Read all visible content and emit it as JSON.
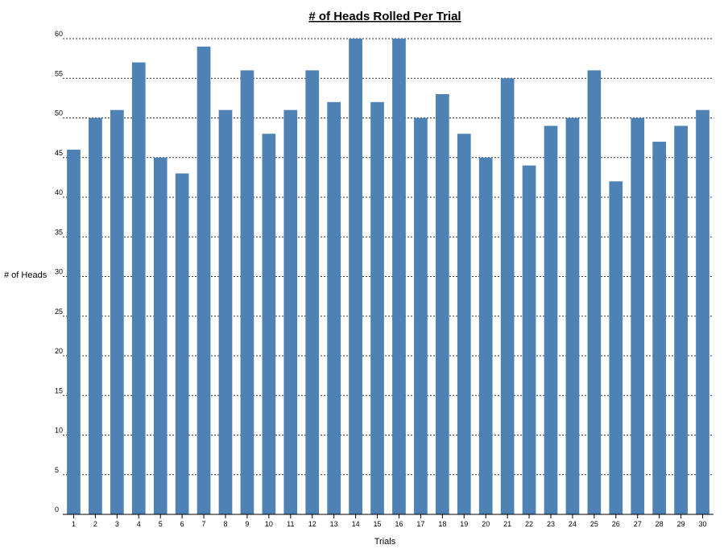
{
  "chart_data": {
    "type": "bar",
    "title": "# of Heads Rolled Per Trial",
    "xlabel": "Trials",
    "ylabel": "# of Heads",
    "ylim": [
      0,
      60
    ],
    "yticks": [
      0,
      5,
      10,
      15,
      20,
      25,
      30,
      35,
      40,
      45,
      50,
      55,
      60
    ],
    "grid": true,
    "bar_color": "#4e81b4",
    "categories": [
      "1",
      "2",
      "3",
      "4",
      "5",
      "6",
      "7",
      "8",
      "9",
      "10",
      "11",
      "12",
      "13",
      "14",
      "15",
      "16",
      "17",
      "18",
      "19",
      "20",
      "21",
      "22",
      "23",
      "24",
      "25",
      "26",
      "27",
      "28",
      "29",
      "30"
    ],
    "values": [
      46,
      50,
      51,
      57,
      45,
      43,
      59,
      51,
      56,
      48,
      51,
      56,
      52,
      60,
      52,
      60,
      50,
      53,
      48,
      45,
      55,
      44,
      49,
      50,
      56,
      42,
      50,
      47,
      49,
      51
    ]
  }
}
